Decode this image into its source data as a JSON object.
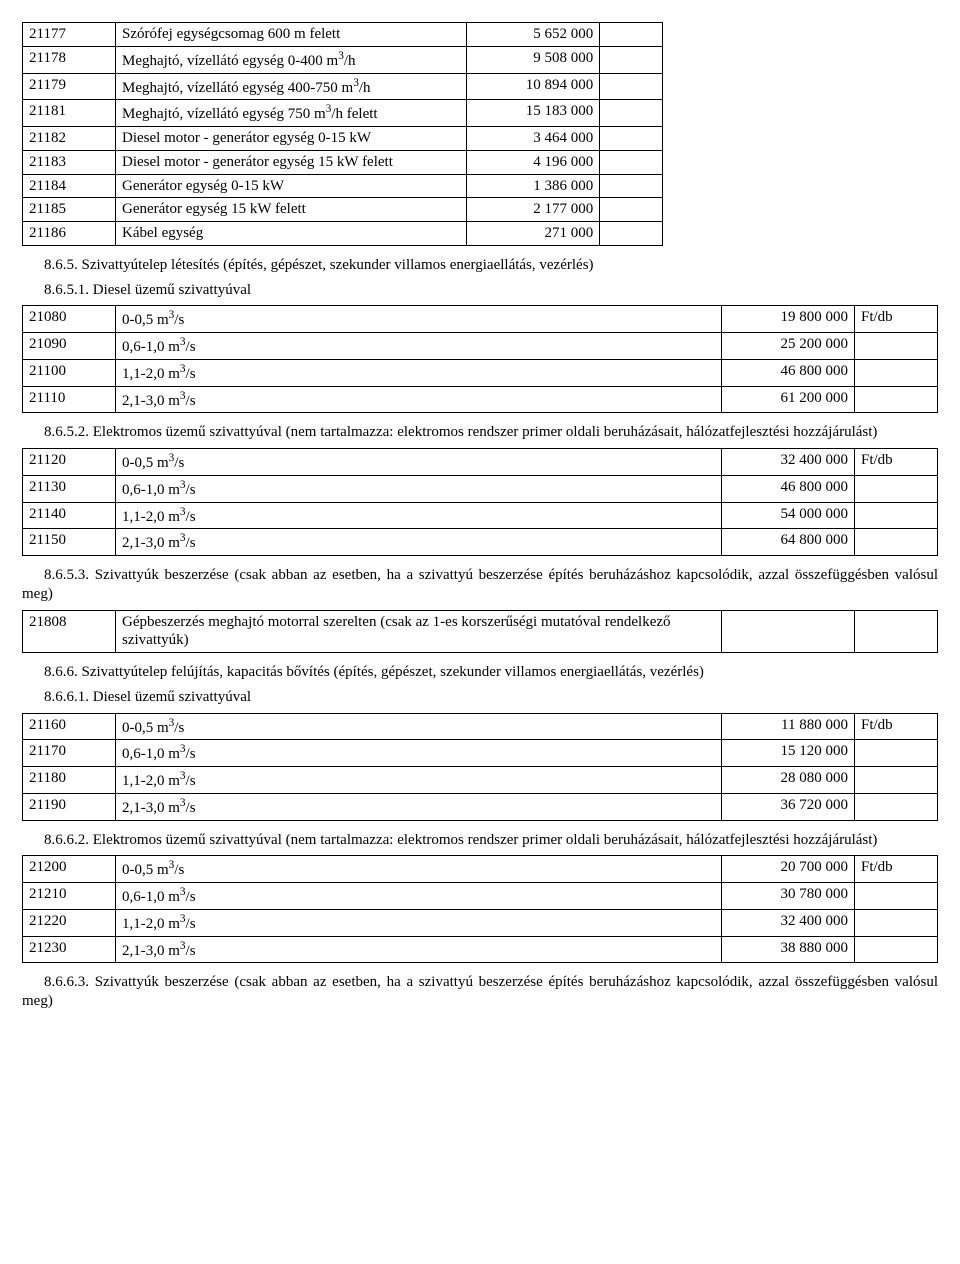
{
  "table1": {
    "rows": [
      {
        "code": "21177",
        "desc": "Szórófej egységcsomag 600 m felett",
        "val": "5 652 000"
      },
      {
        "code": "21178",
        "desc": "Meghajtó, vízellátó egység 0-400 m³/h",
        "val": "9 508 000"
      },
      {
        "code": "21179",
        "desc": "Meghajtó, vízellátó egység 400-750 m³/h",
        "val": "10 894 000"
      },
      {
        "code": "21181",
        "desc": "Meghajtó, vízellátó egység 750 m³/h felett",
        "val": "15 183 000"
      },
      {
        "code": "21182",
        "desc": "Diesel motor - generátor egység 0-15 kW",
        "val": "3 464 000"
      },
      {
        "code": "21183",
        "desc": "Diesel motor - generátor egység 15 kW felett",
        "val": "4 196 000"
      },
      {
        "code": "21184",
        "desc": "Generátor egység 0-15 kW",
        "val": "1 386 000"
      },
      {
        "code": "21185",
        "desc": "Generátor egység 15 kW felett",
        "val": "2 177 000"
      },
      {
        "code": "21186",
        "desc": "Kábel egység",
        "val": "271 000"
      }
    ]
  },
  "s865": "8.6.5. Szivattyútelep létesítés (építés, gépészet, szekunder villamos energiaellátás, vezérlés)",
  "s8651": "8.6.5.1. Diesel üzemű szivattyúval",
  "table2": {
    "rows": [
      {
        "code": "21080",
        "desc": "0-0,5 m³/s",
        "val": "19 800 000",
        "unit": "Ft/db"
      },
      {
        "code": "21090",
        "desc": "0,6-1,0 m³/s",
        "val": "25 200 000",
        "unit": ""
      },
      {
        "code": "21100",
        "desc": "1,1-2,0 m³/s",
        "val": "46 800 000",
        "unit": ""
      },
      {
        "code": "21110",
        "desc": "2,1-3,0 m³/s",
        "val": "61 200 000",
        "unit": ""
      }
    ]
  },
  "s8652": "8.6.5.2. Elektromos üzemű szivattyúval (nem tartalmazza: elektromos rendszer primer oldali beruházásait, hálózatfejlesztési hozzájárulást)",
  "table3": {
    "rows": [
      {
        "code": "21120",
        "desc": "0-0,5 m³/s",
        "val": "32 400 000",
        "unit": "Ft/db"
      },
      {
        "code": "21130",
        "desc": "0,6-1,0 m³/s",
        "val": "46 800 000",
        "unit": ""
      },
      {
        "code": "21140",
        "desc": "1,1-2,0 m³/s",
        "val": "54 000 000",
        "unit": ""
      },
      {
        "code": "21150",
        "desc": "2,1-3,0 m³/s",
        "val": "64 800 000",
        "unit": ""
      }
    ]
  },
  "s8653": "8.6.5.3. Szivattyúk beszerzése (csak abban az esetben, ha a szivattyú beszerzése építés beruházáshoz kapcsolódik, azzal összefüggésben valósul meg)",
  "table4": {
    "rows": [
      {
        "code": "21808",
        "desc": "Gépbeszerzés meghajtó motorral szerelten (csak az 1-es korszerűségi mutatóval rendelkező szivattyúk)",
        "val": "",
        "unit": ""
      }
    ]
  },
  "s866": "8.6.6. Szivattyútelep felújítás, kapacitás bővítés (építés, gépészet, szekunder villamos energiaellátás, vezérlés)",
  "s8661": "8.6.6.1. Diesel üzemű szivattyúval",
  "table5": {
    "rows": [
      {
        "code": "21160",
        "desc": "0-0,5 m³/s",
        "val": "11 880 000",
        "unit": "Ft/db"
      },
      {
        "code": "21170",
        "desc": "0,6-1,0 m³/s",
        "val": "15 120 000",
        "unit": ""
      },
      {
        "code": "21180",
        "desc": "1,1-2,0 m³/s",
        "val": "28 080 000",
        "unit": ""
      },
      {
        "code": "21190",
        "desc": "2,1-3,0 m³/s",
        "val": "36 720 000",
        "unit": ""
      }
    ]
  },
  "s8662": "8.6.6.2. Elektromos üzemű szivattyúval (nem tartalmazza: elektromos rendszer primer oldali beruházásait, hálózatfejlesztési hozzájárulást)",
  "table6": {
    "rows": [
      {
        "code": "21200",
        "desc": "0-0,5 m³/s",
        "val": "20 700 000",
        "unit": "Ft/db"
      },
      {
        "code": "21210",
        "desc": "0,6-1,0 m³/s",
        "val": "30 780 000",
        "unit": ""
      },
      {
        "code": "21220",
        "desc": "1,1-2,0 m³/s",
        "val": "32 400 000",
        "unit": ""
      },
      {
        "code": "21230",
        "desc": "2,1-3,0 m³/s",
        "val": "38 880 000",
        "unit": ""
      }
    ]
  },
  "s8663": "8.6.6.3. Szivattyúk beszerzése (csak abban az esetben, ha a szivattyú beszerzése építés beruházáshoz kapcsolódik, azzal összefüggésben valósul meg)"
}
